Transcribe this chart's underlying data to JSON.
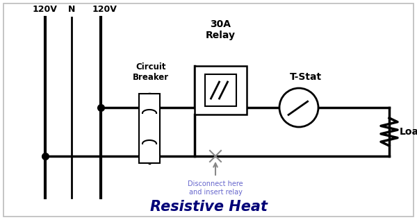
{
  "bg_color": "#ffffff",
  "line_color": "#000000",
  "disconnect_color": "#888888",
  "label_disconnect_color": "#6666cc",
  "title": "Resistive Heat",
  "title_fontsize": 15,
  "label_120v_1": "120V",
  "label_N": "N",
  "label_120v_2": "120V",
  "label_circuit_breaker": "Circuit\nBreaker",
  "label_relay": "30A\nRelay",
  "label_tstat": "T-Stat",
  "label_load": "Load",
  "label_disconnect": "Disconnect here\nand insert relay",
  "wire_lw": 2.5,
  "fig_width": 6.0,
  "fig_height": 3.17,
  "dpi": 100
}
